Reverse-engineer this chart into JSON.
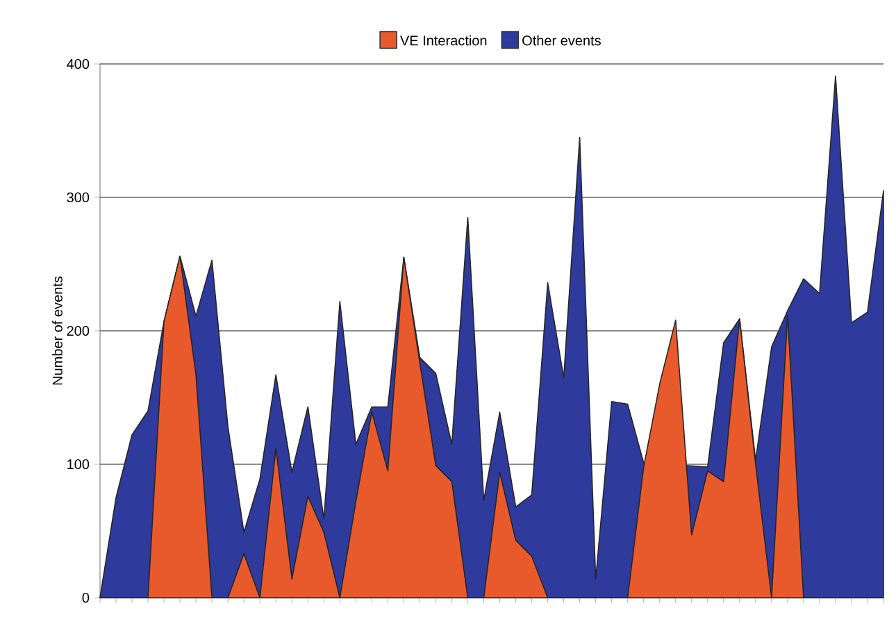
{
  "chart_data": {
    "type": "area",
    "ylabel": "Number of events",
    "categories": [
      null,
      null,
      null,
      null,
      null,
      null,
      null,
      null,
      null,
      null,
      null,
      null,
      null,
      null,
      null,
      null,
      null,
      null,
      null,
      null,
      null,
      null,
      null,
      null,
      null,
      null,
      null,
      null,
      null,
      null,
      null,
      null,
      null,
      null,
      null,
      null,
      null,
      null,
      null,
      null,
      null,
      null,
      null,
      null,
      null,
      null,
      null,
      null,
      null,
      null
    ],
    "series": [
      {
        "name": "Other events",
        "color": "#2e3a9c",
        "values": [
          0,
          75,
          122,
          140,
          207,
          256,
          211,
          253,
          128,
          49,
          89,
          167,
          94,
          143,
          59,
          222,
          115,
          143,
          143,
          255,
          180,
          168,
          115,
          285,
          73,
          139,
          68,
          77,
          236,
          165,
          345,
          14,
          147,
          145,
          101,
          null,
          null,
          null,
          98,
          191,
          209,
          103,
          188,
          215,
          239,
          228,
          391,
          206,
          214,
          305
        ]
      },
      {
        "name": "VE Interaction",
        "color": "#e85a2c",
        "values": [
          0,
          0,
          0,
          0,
          207,
          256,
          167,
          0,
          0,
          33,
          0,
          112,
          14,
          76,
          49,
          0,
          72,
          139,
          95,
          255,
          176,
          99,
          87,
          0,
          0,
          94,
          43,
          31,
          0,
          0,
          0,
          0,
          0,
          0,
          98,
          160,
          208,
          47,
          95,
          87,
          209,
          100,
          0,
          212,
          0,
          0,
          0,
          0,
          0,
          0
        ]
      }
    ],
    "ylim": [
      0,
      400
    ],
    "yticks": [
      0,
      100,
      200,
      300,
      400
    ],
    "grid": "y",
    "legend": "top",
    "tick_labels": "y"
  }
}
